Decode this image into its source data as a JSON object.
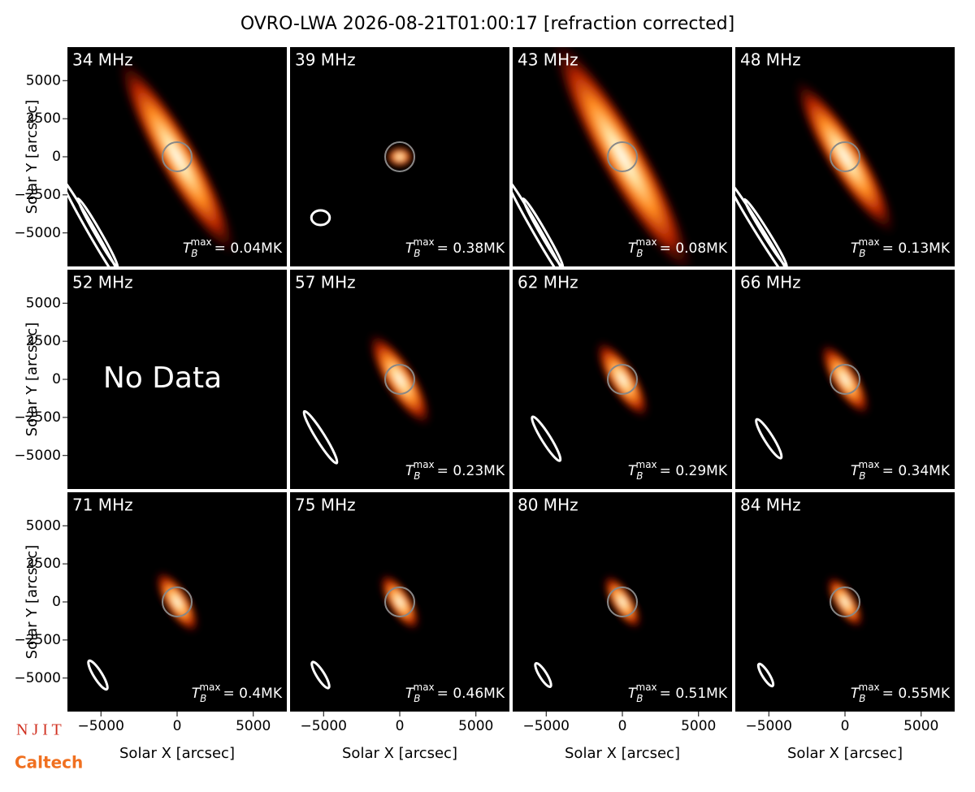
{
  "chart_data": {
    "type": "image-grid",
    "title": "OVRO-LWA 2026-08-21T01:00:17 [refraction corrected]",
    "xlabel": "Solar X [arcsec]",
    "ylabel": "Solar Y [arcsec]",
    "xlim": [
      -7200,
      7200
    ],
    "ylim": [
      -7200,
      7200
    ],
    "xticks": [
      {
        "value": -5000,
        "label": "−5000"
      },
      0,
      5000
    ],
    "yticks": [
      {
        "value": -5000,
        "label": "−5000"
      },
      {
        "value": -2500,
        "label": "−2500"
      },
      0,
      2500,
      5000
    ],
    "tb_symbol": "T",
    "tb_sub": "B",
    "tb_sup": "max",
    "no_data_text": "No Data",
    "logos": [
      "N J I T",
      "Caltech"
    ],
    "panels": [
      {
        "label": "34 MHz",
        "tb_label": "= 0.04MK"
      },
      {
        "label": "39 MHz",
        "tb_label": "= 0.38MK"
      },
      {
        "label": "43 MHz",
        "tb_label": "= 0.08MK"
      },
      {
        "label": "48 MHz",
        "tb_label": "= 0.13MK"
      },
      {
        "label": "52 MHz",
        "no_data": true
      },
      {
        "label": "57 MHz",
        "tb_label": "= 0.23MK"
      },
      {
        "label": "62 MHz",
        "tb_label": "= 0.29MK"
      },
      {
        "label": "66 MHz",
        "tb_label": "= 0.34MK"
      },
      {
        "label": "71 MHz",
        "tb_label": "= 0.4MK"
      },
      {
        "label": "75 MHz",
        "tb_label": "= 0.46MK"
      },
      {
        "label": "80 MHz",
        "tb_label": "= 0.51MK"
      },
      {
        "label": "84 MHz",
        "tb_label": "= 0.55MK"
      }
    ]
  }
}
